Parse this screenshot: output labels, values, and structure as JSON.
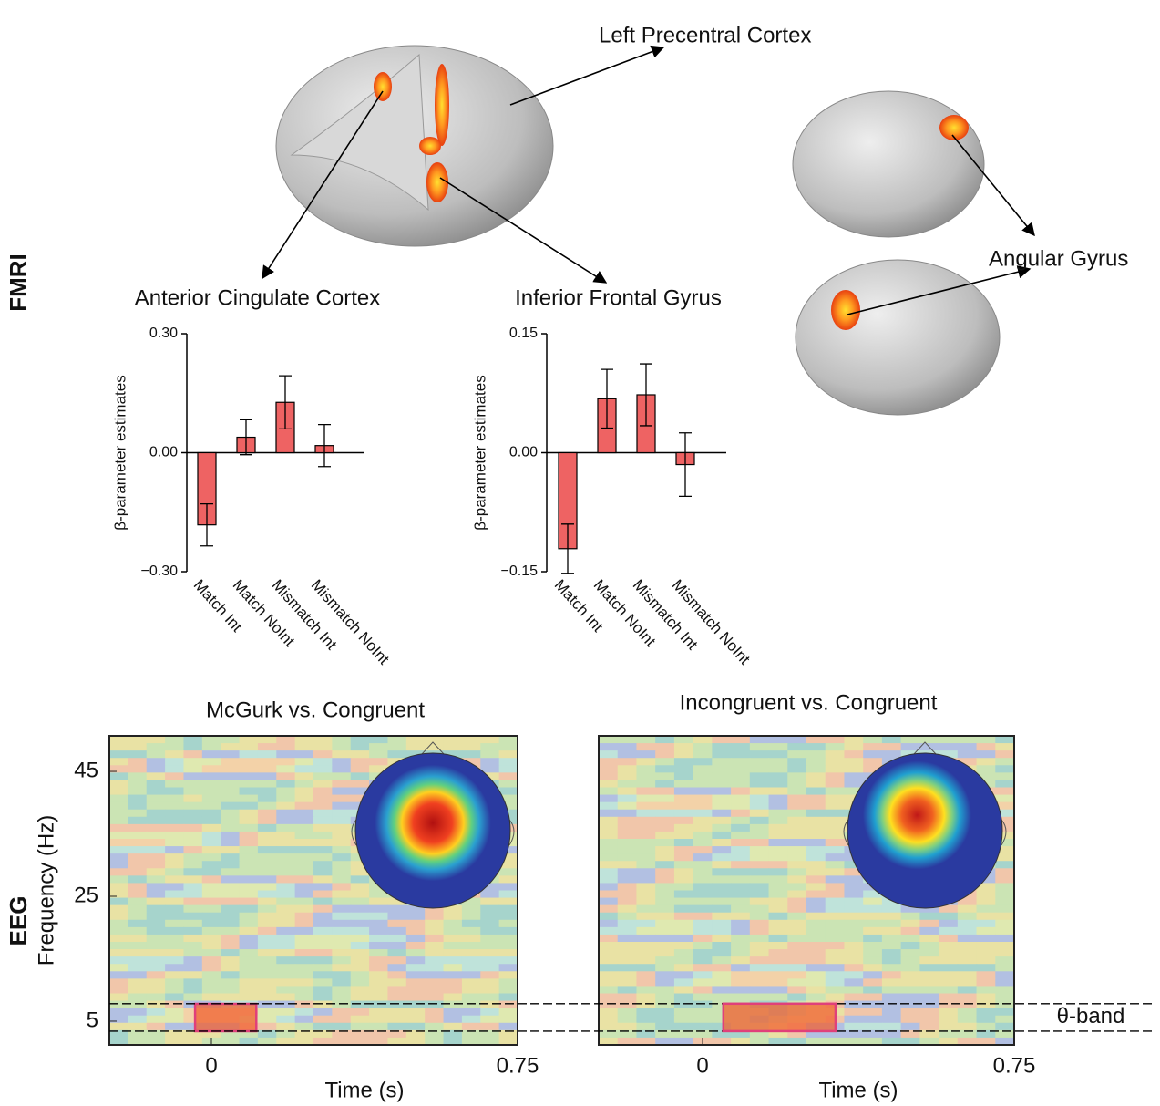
{
  "chart_data": [
    {
      "type": "bar",
      "title": "Anterior Cingulate Cortex",
      "ylabel": "β-parameter estimates",
      "categories": [
        "Match Int",
        "Match NoInt",
        "Mismatch Int",
        "Mismatch NoInt"
      ],
      "values": [
        -0.182,
        0.039,
        0.127,
        0.018
      ],
      "errors": [
        0.053,
        0.044,
        0.067,
        0.053
      ],
      "color": "#ee6363",
      "ylim": [
        -0.3,
        0.3
      ],
      "yticks": [
        {
          "value": 0.3,
          "label": "0.30"
        },
        {
          "value": 0.0,
          "label": "0.00"
        },
        {
          "value": -0.3,
          "label": "−0.30"
        }
      ]
    },
    {
      "type": "bar",
      "title": "Inferior Frontal Gyrus",
      "ylabel": "β-parameter estimates",
      "categories": [
        "Match Int",
        "Match NoInt",
        "Mismatch Int",
        "Mismatch NoInt"
      ],
      "values": [
        -0.121,
        0.068,
        0.073,
        -0.015
      ],
      "errors": [
        0.031,
        0.037,
        0.039,
        0.04
      ],
      "color": "#ee6363",
      "ylim": [
        -0.15,
        0.15
      ],
      "yticks": [
        {
          "value": 0.15,
          "label": "0.15"
        },
        {
          "value": 0.0,
          "label": "0.00"
        },
        {
          "value": -0.15,
          "label": "−0.15"
        }
      ]
    },
    {
      "type": "spectrogram",
      "title": "McGurk vs. Congruent",
      "xlabel": "Time (s)",
      "ylabel": "Frequency (Hz)",
      "xlim": [
        -0.25,
        0.75
      ],
      "ylim": [
        1.2,
        50.7
      ],
      "xticks": [
        0,
        0.75
      ],
      "yticks": [
        45,
        25,
        5
      ],
      "window": [
        -0.04,
        0.11
      ],
      "window_color": "#e0407a"
    },
    {
      "type": "spectrogram",
      "title": "Incongruent vs. Congruent",
      "xlabel": "Time (s)",
      "xlim": [
        -0.25,
        0.75
      ],
      "ylim": [
        1.2,
        50.7
      ],
      "xticks": [
        0,
        0.75
      ],
      "window": [
        0.05,
        0.32
      ],
      "window_color": "#e0407a",
      "band": [
        3.4,
        7.8
      ],
      "band_label": "θ-band"
    }
  ],
  "figure": {
    "panel_labels": [
      "FMRI",
      "EEG"
    ],
    "region_labels": [
      "Left Precentral Cortex",
      "Angular Gyrus"
    ]
  }
}
